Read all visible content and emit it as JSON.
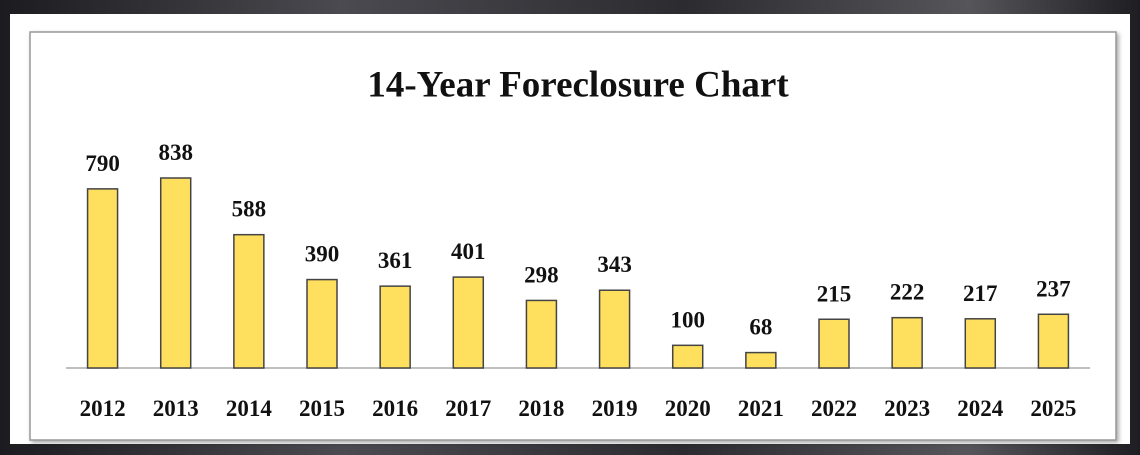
{
  "chart_data": {
    "type": "bar",
    "title": "14-Year Foreclosure Chart",
    "categories": [
      "2012",
      "2013",
      "2014",
      "2015",
      "2016",
      "2017",
      "2018",
      "2019",
      "2020",
      "2021",
      "2022",
      "2023",
      "2024",
      "2025"
    ],
    "values": [
      790,
      838,
      588,
      390,
      361,
      401,
      298,
      343,
      100,
      68,
      215,
      222,
      217,
      237
    ],
    "color": "#ffdf5e"
  }
}
